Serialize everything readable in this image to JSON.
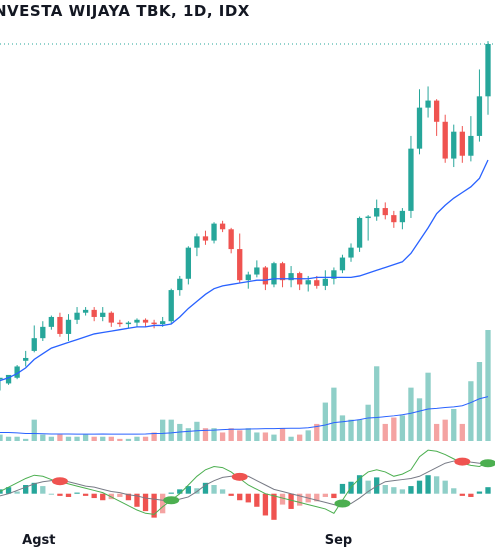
{
  "title": "NVESTA WIJAYA TBK, 1D, IDX",
  "colors": {
    "up": "#26a69a",
    "down": "#ef5350",
    "up_vol": "#8fcfc8",
    "down_vol": "#f4a3a2",
    "ma": "#2962ff",
    "vol_ma": "#2962ff",
    "macd_line": "#4caf50",
    "signal_line": "#787b86",
    "price_line": "#26a69a"
  },
  "chart_data": [
    {
      "type": "candlestick",
      "name": "price",
      "price_line_level": 0.0,
      "x_tick_labels": [
        "Agst",
        "Sep"
      ],
      "candles": [
        [
          0.33,
          0.34,
          0.25,
          0.33
        ],
        [
          0.3,
          0.36,
          0.29,
          0.34
        ],
        [
          0.34,
          0.42,
          0.33,
          0.43
        ],
        [
          0.46,
          0.48,
          0.42,
          0.53
        ],
        [
          0.53,
          0.62,
          0.52,
          0.71
        ],
        [
          0.62,
          0.7,
          0.6,
          0.74
        ],
        [
          0.7,
          0.77,
          0.68,
          0.78
        ],
        [
          0.77,
          0.65,
          0.63,
          0.8
        ],
        [
          0.65,
          0.75,
          0.6,
          0.79
        ],
        [
          0.75,
          0.8,
          0.72,
          0.84
        ],
        [
          0.8,
          0.82,
          0.78,
          0.84
        ],
        [
          0.82,
          0.77,
          0.74,
          0.84
        ],
        [
          0.77,
          0.8,
          0.74,
          0.84
        ],
        [
          0.8,
          0.73,
          0.7,
          0.81
        ],
        [
          0.73,
          0.72,
          0.7,
          0.75
        ],
        [
          0.72,
          0.73,
          0.69,
          0.74
        ],
        [
          0.73,
          0.75,
          0.7,
          0.76
        ],
        [
          0.75,
          0.73,
          0.7,
          0.76
        ],
        [
          0.73,
          0.72,
          0.69,
          0.75
        ],
        [
          0.72,
          0.74,
          0.7,
          0.77
        ],
        [
          0.74,
          0.96,
          0.72,
          0.97
        ],
        [
          0.96,
          1.04,
          0.92,
          1.06
        ],
        [
          1.04,
          1.26,
          1.0,
          1.27
        ],
        [
          1.26,
          1.34,
          1.2,
          1.36
        ],
        [
          1.34,
          1.31,
          1.28,
          1.38
        ],
        [
          1.31,
          1.43,
          1.29,
          1.44
        ],
        [
          1.43,
          1.39,
          1.37,
          1.45
        ],
        [
          1.39,
          1.25,
          1.22,
          1.4
        ],
        [
          1.25,
          1.03,
          1.01,
          1.36
        ],
        [
          1.03,
          1.07,
          0.97,
          1.09
        ],
        [
          1.07,
          1.12,
          1.05,
          1.17
        ],
        [
          1.12,
          1.0,
          0.96,
          1.13
        ],
        [
          1.0,
          1.15,
          0.98,
          1.16
        ],
        [
          1.15,
          1.03,
          0.98,
          1.16
        ],
        [
          1.03,
          1.08,
          0.98,
          1.13
        ],
        [
          1.08,
          1.0,
          0.96,
          1.09
        ],
        [
          1.0,
          1.03,
          0.95,
          1.06
        ],
        [
          1.03,
          0.99,
          0.97,
          1.06
        ],
        [
          0.99,
          1.04,
          0.96,
          1.1
        ],
        [
          1.04,
          1.1,
          1.0,
          1.12
        ],
        [
          1.1,
          1.19,
          1.08,
          1.21
        ],
        [
          1.19,
          1.26,
          1.16,
          1.29
        ],
        [
          1.26,
          1.47,
          1.23,
          1.48
        ],
        [
          1.47,
          1.48,
          1.31,
          1.49
        ],
        [
          1.48,
          1.54,
          1.45,
          1.6
        ],
        [
          1.54,
          1.49,
          1.46,
          1.58
        ],
        [
          1.49,
          1.44,
          1.4,
          1.52
        ],
        [
          1.44,
          1.52,
          1.39,
          1.54
        ],
        [
          1.52,
          1.96,
          1.47,
          2.05
        ],
        [
          1.96,
          2.25,
          1.92,
          2.38
        ],
        [
          2.25,
          2.3,
          2.18,
          2.4
        ],
        [
          2.3,
          2.15,
          2.05,
          2.31
        ],
        [
          2.15,
          1.89,
          1.86,
          2.2
        ],
        [
          1.89,
          2.08,
          1.83,
          2.13
        ],
        [
          2.08,
          1.91,
          1.86,
          2.12
        ],
        [
          1.91,
          2.05,
          1.87,
          2.19
        ],
        [
          2.05,
          2.33,
          2.01,
          2.52
        ],
        [
          2.33,
          2.7,
          2.2,
          2.72
        ]
      ],
      "ma": [
        0.32,
        0.34,
        0.37,
        0.41,
        0.47,
        0.51,
        0.55,
        0.57,
        0.59,
        0.61,
        0.63,
        0.65,
        0.66,
        0.67,
        0.68,
        0.69,
        0.7,
        0.7,
        0.71,
        0.71,
        0.72,
        0.77,
        0.83,
        0.88,
        0.93,
        0.97,
        0.99,
        1.0,
        1.01,
        1.02,
        1.03,
        1.03,
        1.04,
        1.04,
        1.04,
        1.04,
        1.04,
        1.05,
        1.05,
        1.05,
        1.05,
        1.05,
        1.06,
        1.08,
        1.1,
        1.12,
        1.14,
        1.16,
        1.22,
        1.31,
        1.4,
        1.5,
        1.56,
        1.61,
        1.65,
        1.69,
        1.75,
        1.88
      ]
    },
    {
      "type": "bar",
      "name": "volume",
      "values": [
        3,
        2,
        2,
        1,
        10,
        3,
        2,
        3,
        2,
        2,
        3,
        2,
        2,
        2,
        1,
        1,
        2,
        2,
        4,
        10,
        10,
        8,
        6,
        9,
        6,
        6,
        4,
        6,
        5,
        6,
        4,
        4,
        3,
        6,
        2,
        3,
        5,
        8,
        18,
        25,
        12,
        10,
        10,
        17,
        35,
        8,
        11,
        12,
        25,
        20,
        32,
        8,
        10,
        15,
        8,
        28,
        37,
        52
      ],
      "ma": [
        4,
        4,
        3.8,
        3.5,
        3.5,
        3.4,
        3.3,
        3.3,
        3.3,
        3.2,
        3.2,
        3.2,
        3.3,
        3.2,
        3.2,
        3.2,
        3.2,
        3.3,
        3.5,
        3.6,
        3.8,
        4.2,
        4.5,
        4.8,
        5.0,
        5.1,
        5.3,
        5.5,
        5.5,
        5.6,
        5.7,
        5.8,
        5.8,
        5.9,
        6.0,
        6.0,
        6.2,
        6.8,
        7.5,
        8.6,
        9.0,
        9.5,
        10.0,
        10.8,
        11.0,
        11.4,
        11.8,
        12.3,
        13.0,
        14.0,
        15.0,
        15.3,
        15.7,
        16.0,
        16.5,
        18.0,
        19.8,
        20.8
      ]
    },
    {
      "type": "histogram",
      "name": "macd",
      "histogram": [
        0.2,
        0.3,
        0.1,
        0.4,
        0.5,
        0.35,
        0.0,
        -0.1,
        -0.15,
        0.05,
        -0.1,
        -0.2,
        -0.3,
        -0.25,
        -0.15,
        -0.3,
        -0.6,
        -0.8,
        -1.1,
        -0.9,
        0.05,
        0.2,
        0.35,
        0.25,
        0.5,
        0.4,
        0.2,
        -0.1,
        -0.3,
        -0.4,
        -0.6,
        -1.0,
        -1.2,
        -0.5,
        -0.7,
        -0.55,
        -0.4,
        -0.35,
        -0.15,
        -0.2,
        0.45,
        0.55,
        0.85,
        0.6,
        0.75,
        0.4,
        0.3,
        0.2,
        0.35,
        0.6,
        0.85,
        0.8,
        0.6,
        0.25,
        -0.1,
        -0.15,
        0.1,
        0.3
      ],
      "macd_line": [
        0.1,
        0.3,
        0.5,
        0.7,
        0.85,
        0.8,
        0.65,
        0.55,
        0.45,
        0.35,
        0.25,
        0.15,
        0.05,
        -0.15,
        -0.35,
        -0.55,
        -0.75,
        -0.9,
        -0.95,
        -0.6,
        -0.3,
        0.0,
        0.4,
        0.8,
        1.1,
        1.25,
        1.2,
        1.0,
        0.7,
        0.4,
        0.2,
        0.0,
        -0.1,
        -0.2,
        -0.3,
        -0.4,
        -0.5,
        -0.6,
        -0.7,
        -0.9,
        -0.3,
        0.3,
        0.7,
        1.0,
        1.1,
        1.0,
        0.8,
        0.9,
        1.1,
        1.7,
        2.0,
        1.95,
        1.8,
        1.6,
        1.4,
        1.3,
        1.25,
        1.45
      ],
      "signal_line": [
        -0.1,
        0.0,
        0.15,
        0.3,
        0.45,
        0.55,
        0.6,
        0.6,
        0.55,
        0.45,
        0.35,
        0.3,
        0.2,
        0.1,
        0.05,
        -0.05,
        -0.1,
        -0.2,
        -0.25,
        -0.3,
        -0.3,
        -0.25,
        -0.15,
        0.1,
        0.4,
        0.6,
        0.75,
        0.8,
        0.85,
        0.8,
        0.6,
        0.4,
        0.2,
        0.1,
        0.0,
        -0.1,
        -0.2,
        -0.3,
        -0.4,
        -0.5,
        -0.6,
        -0.45,
        -0.2,
        0.1,
        0.35,
        0.55,
        0.6,
        0.65,
        0.7,
        0.8,
        1.0,
        1.2,
        1.4,
        1.5,
        1.55,
        1.45,
        1.4,
        1.35
      ],
      "crossovers": [
        {
          "index": 7,
          "kind": "down"
        },
        {
          "index": 20,
          "kind": "up"
        },
        {
          "index": 28,
          "kind": "down"
        },
        {
          "index": 40,
          "kind": "up"
        },
        {
          "index": 54,
          "kind": "down"
        },
        {
          "index": 57,
          "kind": "up"
        }
      ]
    }
  ]
}
